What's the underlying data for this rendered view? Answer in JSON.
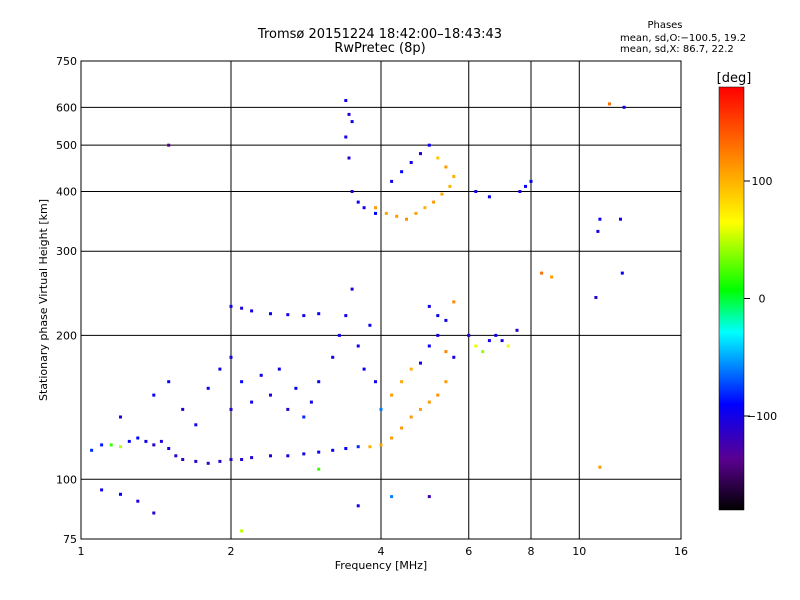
{
  "title_line1": "Tromsø 20151224 18:42:00–18:43:43",
  "title_line2": "RwPretec (8p)",
  "phases": {
    "heading": "Phases",
    "line1": "mean, sd,O:−100.5, 19.2",
    "line2": "mean, sd,X:  86.7, 22.2"
  },
  "colorbar": {
    "unit_label": "[deg]",
    "ticks": [
      {
        "value": 100,
        "label": "100"
      },
      {
        "value": 0,
        "label": "0"
      },
      {
        "value": -100,
        "label": "−100"
      }
    ],
    "range": [
      -180,
      180
    ]
  },
  "chart_data": {
    "type": "scatter",
    "xlabel": "Frequency [MHz]",
    "ylabel": "Stationary phase Virtual Height [km]",
    "xscale": "log",
    "yscale": "log",
    "xlim": [
      1,
      16
    ],
    "ylim": [
      75,
      750
    ],
    "xticks": [
      {
        "value": 1,
        "label": "1"
      },
      {
        "value": 2,
        "label": "2"
      },
      {
        "value": 4,
        "label": "4"
      },
      {
        "value": 6,
        "label": "6"
      },
      {
        "value": 8,
        "label": "8"
      },
      {
        "value": 10,
        "label": "10"
      },
      {
        "value": 16,
        "label": "16"
      }
    ],
    "yticks": [
      {
        "value": 75,
        "label": "75"
      },
      {
        "value": 100,
        "label": "100"
      },
      {
        "value": 200,
        "label": "200"
      },
      {
        "value": 300,
        "label": "300"
      },
      {
        "value": 400,
        "label": "400"
      },
      {
        "value": 500,
        "label": "500"
      },
      {
        "value": 600,
        "label": "600"
      },
      {
        "value": 750,
        "label": "750"
      }
    ],
    "grid": true,
    "color_encoding": "phase [deg]",
    "points": [
      [
        1.05,
        115,
        -80
      ],
      [
        1.1,
        118,
        -85
      ],
      [
        1.15,
        118,
        20
      ],
      [
        1.2,
        117,
        50
      ],
      [
        1.25,
        120,
        -95
      ],
      [
        1.3,
        122,
        -90
      ],
      [
        1.35,
        120,
        -100
      ],
      [
        1.4,
        118,
        -110
      ],
      [
        1.45,
        120,
        -105
      ],
      [
        1.5,
        116,
        -100
      ],
      [
        1.55,
        112,
        -110
      ],
      [
        1.6,
        110,
        -115
      ],
      [
        1.7,
        109,
        -110
      ],
      [
        1.8,
        108,
        -115
      ],
      [
        1.9,
        109,
        -110
      ],
      [
        2.0,
        110,
        -112
      ],
      [
        2.1,
        110,
        -108
      ],
      [
        2.2,
        111,
        -110
      ],
      [
        2.4,
        112,
        -105
      ],
      [
        2.6,
        112,
        -100
      ],
      [
        2.8,
        113,
        -100
      ],
      [
        3.0,
        114,
        -95
      ],
      [
        3.2,
        115,
        -90
      ],
      [
        3.4,
        116,
        -90
      ],
      [
        3.6,
        117,
        -80
      ],
      [
        3.8,
        117,
        100
      ],
      [
        4.0,
        118,
        105
      ],
      [
        4.2,
        122,
        110
      ],
      [
        4.4,
        128,
        112
      ],
      [
        4.6,
        135,
        110
      ],
      [
        4.8,
        140,
        108
      ],
      [
        5.0,
        145,
        112
      ],
      [
        5.2,
        150,
        115
      ],
      [
        5.4,
        160,
        110
      ],
      [
        1.2,
        135,
        -100
      ],
      [
        1.4,
        150,
        -95
      ],
      [
        1.5,
        160,
        -90
      ],
      [
        1.6,
        140,
        -105
      ],
      [
        1.7,
        130,
        -100
      ],
      [
        1.8,
        155,
        -95
      ],
      [
        1.9,
        170,
        -100
      ],
      [
        2.0,
        140,
        -110
      ],
      [
        2.0,
        180,
        -100
      ],
      [
        2.1,
        160,
        -90
      ],
      [
        2.2,
        145,
        -100
      ],
      [
        2.3,
        165,
        -95
      ],
      [
        2.4,
        150,
        -105
      ],
      [
        2.5,
        170,
        -100
      ],
      [
        2.6,
        140,
        -110
      ],
      [
        2.7,
        155,
        -90
      ],
      [
        2.8,
        135,
        -80
      ],
      [
        2.9,
        145,
        -100
      ],
      [
        3.0,
        160,
        -95
      ],
      [
        3.2,
        180,
        -100
      ],
      [
        3.3,
        200,
        -95
      ],
      [
        3.4,
        220,
        -100
      ],
      [
        3.5,
        250,
        -105
      ],
      [
        3.6,
        190,
        -100
      ],
      [
        3.7,
        170,
        -90
      ],
      [
        3.8,
        210,
        -95
      ],
      [
        3.9,
        160,
        -100
      ],
      [
        4.0,
        140,
        -60
      ],
      [
        4.2,
        150,
        110
      ],
      [
        4.4,
        160,
        105
      ],
      [
        4.6,
        170,
        100
      ],
      [
        4.8,
        175,
        -100
      ],
      [
        5.0,
        190,
        -95
      ],
      [
        5.2,
        200,
        -100
      ],
      [
        5.4,
        185,
        120
      ],
      [
        5.6,
        180,
        -100
      ],
      [
        1.5,
        500,
        -140
      ],
      [
        2.0,
        230,
        -100
      ],
      [
        2.1,
        228,
        -105
      ],
      [
        2.2,
        225,
        -100
      ],
      [
        2.4,
        222,
        -95
      ],
      [
        2.6,
        221,
        -100
      ],
      [
        2.8,
        220,
        -100
      ],
      [
        3.0,
        222,
        -95
      ],
      [
        3.4,
        620,
        -100
      ],
      [
        3.45,
        580,
        -105
      ],
      [
        3.5,
        560,
        -95
      ],
      [
        3.4,
        520,
        -100
      ],
      [
        3.45,
        470,
        -110
      ],
      [
        3.5,
        400,
        -100
      ],
      [
        3.6,
        380,
        -95
      ],
      [
        3.7,
        370,
        -100
      ],
      [
        3.9,
        360,
        -90
      ],
      [
        3.9,
        370,
        110
      ],
      [
        4.1,
        360,
        105
      ],
      [
        4.3,
        355,
        110
      ],
      [
        4.5,
        350,
        115
      ],
      [
        4.7,
        360,
        108
      ],
      [
        4.9,
        370,
        100
      ],
      [
        5.1,
        380,
        112
      ],
      [
        5.3,
        395,
        105
      ],
      [
        5.5,
        410,
        100
      ],
      [
        4.2,
        420,
        -100
      ],
      [
        4.4,
        440,
        -90
      ],
      [
        4.6,
        460,
        -95
      ],
      [
        4.8,
        480,
        -100
      ],
      [
        5.0,
        500,
        -95
      ],
      [
        5.2,
        470,
        90
      ],
      [
        5.4,
        450,
        110
      ],
      [
        5.6,
        430,
        100
      ],
      [
        5.0,
        230,
        -100
      ],
      [
        5.2,
        220,
        -95
      ],
      [
        5.4,
        215,
        -100
      ],
      [
        5.6,
        235,
        120
      ],
      [
        6.0,
        200,
        -100
      ],
      [
        6.2,
        190,
        60
      ],
      [
        6.4,
        185,
        40
      ],
      [
        6.6,
        195,
        -100
      ],
      [
        6.8,
        200,
        -95
      ],
      [
        7.0,
        195,
        -100
      ],
      [
        7.2,
        190,
        60
      ],
      [
        7.5,
        205,
        -105
      ],
      [
        6.2,
        400,
        -100
      ],
      [
        6.6,
        390,
        -95
      ],
      [
        7.6,
        400,
        -100
      ],
      [
        7.8,
        410,
        -95
      ],
      [
        8.0,
        420,
        -90
      ],
      [
        8.4,
        270,
        130
      ],
      [
        8.8,
        265,
        110
      ],
      [
        10.8,
        240,
        -110
      ],
      [
        10.9,
        330,
        -100
      ],
      [
        11.0,
        350,
        -95
      ],
      [
        11.5,
        610,
        130
      ],
      [
        12.1,
        350,
        -100
      ],
      [
        12.2,
        270,
        -90
      ],
      [
        12.3,
        600,
        -100
      ],
      [
        1.1,
        95,
        -100
      ],
      [
        1.2,
        93,
        -90
      ],
      [
        1.3,
        90,
        -105
      ],
      [
        1.4,
        85,
        -110
      ],
      [
        2.1,
        78,
        50
      ],
      [
        3.0,
        105,
        20
      ],
      [
        3.6,
        88,
        -100
      ],
      [
        4.2,
        92,
        -60
      ],
      [
        5.0,
        92,
        -120
      ],
      [
        11.0,
        106,
        110
      ]
    ]
  }
}
